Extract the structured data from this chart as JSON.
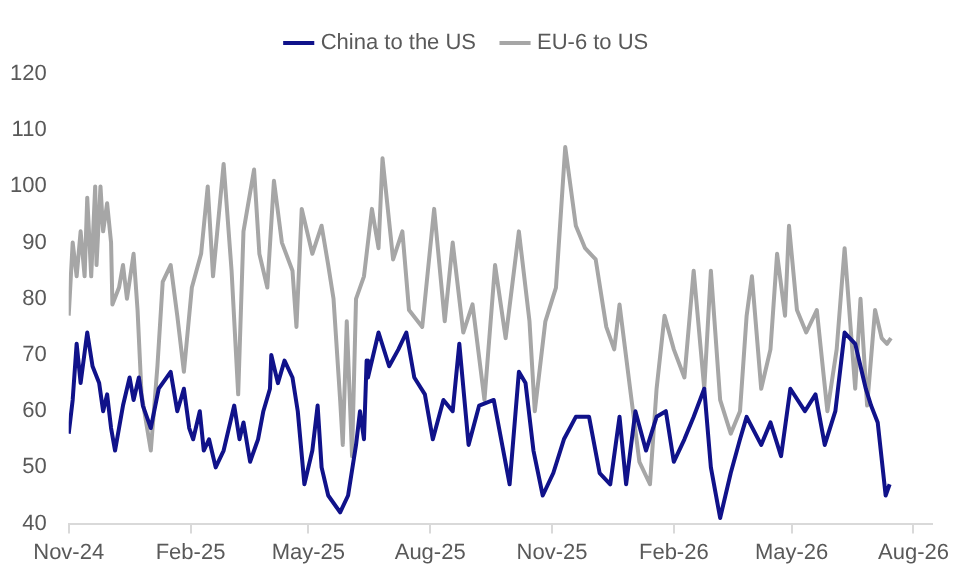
{
  "chart_data": {
    "type": "line",
    "legend": "top",
    "grid": false,
    "marker": "none",
    "line_style": "solid",
    "ylim": [
      40,
      120
    ],
    "yticks": [
      40,
      50,
      60,
      70,
      80,
      90,
      100,
      110,
      120
    ],
    "xlim": [
      "2024-11-01",
      "2026-08-15"
    ],
    "xticks": [
      {
        "value": "2024-11-01",
        "label": "Nov-24"
      },
      {
        "value": "2025-02-01",
        "label": "Feb-25"
      },
      {
        "value": "2025-05-01",
        "label": "May-25"
      },
      {
        "value": "2025-08-01",
        "label": "Aug-25"
      },
      {
        "value": "2025-11-01",
        "label": "Nov-25"
      },
      {
        "value": "2026-02-01",
        "label": "Feb-26"
      },
      {
        "value": "2026-05-01",
        "label": "May-26"
      },
      {
        "value": "2026-08-01",
        "label": "Aug-26"
      }
    ],
    "series": [
      {
        "name": "China to the US",
        "color": "#10128a",
        "x": [
          "2024-11-01",
          "2024-11-04",
          "2024-11-07",
          "2024-11-10",
          "2024-11-15",
          "2024-11-19",
          "2024-11-24",
          "2024-11-27",
          "2024-11-30",
          "2024-12-03",
          "2024-12-06",
          "2024-12-09",
          "2024-12-12",
          "2024-12-17",
          "2024-12-20",
          "2024-12-24",
          "2024-12-27",
          "2025-01-02",
          "2025-01-08",
          "2025-01-17",
          "2025-01-22",
          "2025-01-27",
          "2025-01-31",
          "2025-02-03",
          "2025-02-08",
          "2025-02-11",
          "2025-02-15",
          "2025-02-20",
          "2025-02-26",
          "2025-03-06",
          "2025-03-10",
          "2025-03-13",
          "2025-03-18",
          "2025-03-24",
          "2025-03-28",
          "2025-04-02",
          "2025-04-03",
          "2025-04-08",
          "2025-04-13",
          "2025-04-19",
          "2025-04-23",
          "2025-04-28",
          "2025-05-04",
          "2025-05-08",
          "2025-05-11",
          "2025-05-16",
          "2025-05-25",
          "2025-05-31",
          "2025-06-06",
          "2025-06-09",
          "2025-06-12",
          "2025-06-14",
          "2025-06-15",
          "2025-06-23",
          "2025-07-01",
          "2025-07-08",
          "2025-07-14",
          "2025-07-20",
          "2025-07-28",
          "2025-08-03",
          "2025-08-11",
          "2025-08-18",
          "2025-08-23",
          "2025-08-30",
          "2025-09-07",
          "2025-09-18",
          "2025-09-30",
          "2025-10-07",
          "2025-10-12",
          "2025-10-18",
          "2025-10-25",
          "2025-11-02",
          "2025-11-10",
          "2025-11-19",
          "2025-11-29",
          "2025-12-07",
          "2025-12-15",
          "2025-12-22",
          "2025-12-27",
          "2026-01-03",
          "2026-01-11",
          "2026-01-19",
          "2026-01-26",
          "2026-02-01",
          "2026-02-09",
          "2026-02-16",
          "2026-02-24",
          "2026-03-01",
          "2026-03-08",
          "2026-03-16",
          "2026-03-23",
          "2026-03-28",
          "2026-04-08",
          "2026-04-15",
          "2026-04-23",
          "2026-04-30",
          "2026-05-11",
          "2026-05-19",
          "2026-05-26",
          "2026-06-03",
          "2026-06-10",
          "2026-06-18",
          "2026-06-26",
          "2026-06-30",
          "2026-07-05",
          "2026-07-11",
          "2026-07-14"
        ],
        "values": [
          56,
          62,
          72,
          65,
          74,
          68,
          65,
          60,
          63,
          57,
          53,
          57,
          61,
          66,
          62,
          66,
          61,
          57,
          64,
          67,
          60,
          64,
          57,
          55,
          60,
          53,
          55,
          50,
          53,
          61,
          55,
          58,
          51,
          55,
          60,
          64,
          70,
          65,
          69,
          66,
          60,
          47,
          53,
          61,
          50,
          45,
          42,
          45,
          54,
          60,
          55,
          69,
          66,
          74,
          68,
          71,
          74,
          66,
          63,
          55,
          62,
          60,
          72,
          54,
          61,
          62,
          47,
          67,
          65,
          53,
          45,
          49,
          55,
          59,
          59,
          49,
          47,
          59,
          47,
          60,
          53,
          59,
          60,
          51,
          55,
          59,
          64,
          50,
          41,
          49,
          55,
          59,
          54,
          58,
          52,
          64,
          60,
          63,
          54,
          60,
          74,
          72,
          64,
          61,
          58,
          45,
          47
        ]
      },
      {
        "name": "EU-6 to US",
        "color": "#a6a6a6",
        "x": [
          "2024-11-01",
          "2024-11-04",
          "2024-11-07",
          "2024-11-10",
          "2024-11-13",
          "2024-11-15",
          "2024-11-18",
          "2024-11-21",
          "2024-11-22",
          "2024-11-25",
          "2024-11-27",
          "2024-11-30",
          "2024-12-03",
          "2024-12-04",
          "2024-12-09",
          "2024-12-12",
          "2024-12-15",
          "2024-12-20",
          "2024-12-23",
          "2024-12-26",
          "2025-01-02",
          "2025-01-07",
          "2025-01-11",
          "2025-01-17",
          "2025-01-22",
          "2025-01-27",
          "2025-02-02",
          "2025-02-09",
          "2025-02-14",
          "2025-02-18",
          "2025-02-26",
          "2025-03-04",
          "2025-03-09",
          "2025-03-13",
          "2025-03-21",
          "2025-03-25",
          "2025-03-31",
          "2025-04-05",
          "2025-04-11",
          "2025-04-19",
          "2025-04-22",
          "2025-04-26",
          "2025-05-04",
          "2025-05-11",
          "2025-05-16",
          "2025-05-20",
          "2025-05-25",
          "2025-05-27",
          "2025-05-30",
          "2025-06-03",
          "2025-06-06",
          "2025-06-12",
          "2025-06-18",
          "2025-06-23",
          "2025-06-26",
          "2025-07-04",
          "2025-07-11",
          "2025-07-16",
          "2025-07-26",
          "2025-08-04",
          "2025-08-12",
          "2025-08-18",
          "2025-08-26",
          "2025-09-02",
          "2025-09-11",
          "2025-09-19",
          "2025-09-27",
          "2025-10-07",
          "2025-10-15",
          "2025-10-19",
          "2025-10-27",
          "2025-11-04",
          "2025-11-11",
          "2025-11-19",
          "2025-11-26",
          "2025-12-04",
          "2025-12-12",
          "2025-12-18",
          "2025-12-22",
          "2025-12-30",
          "2026-01-06",
          "2026-01-14",
          "2026-01-19",
          "2026-01-25",
          "2026-02-01",
          "2026-02-09",
          "2026-02-16",
          "2026-02-24",
          "2026-03-01",
          "2026-03-08",
          "2026-03-16",
          "2026-03-23",
          "2026-03-28",
          "2026-04-01",
          "2026-04-08",
          "2026-04-15",
          "2026-04-20",
          "2026-04-26",
          "2026-04-29",
          "2026-05-05",
          "2026-05-12",
          "2026-05-20",
          "2026-05-28",
          "2026-06-04",
          "2026-06-10",
          "2026-06-18",
          "2026-06-22",
          "2026-06-27",
          "2026-07-03",
          "2026-07-08",
          "2026-07-12",
          "2026-07-15"
        ],
        "values": [
          77,
          90,
          84,
          92,
          84,
          98,
          84,
          100,
          86,
          100,
          92,
          97,
          90,
          79,
          82,
          86,
          80,
          88,
          78,
          63,
          53,
          68,
          83,
          86,
          77,
          67,
          82,
          88,
          100,
          84,
          104,
          85,
          63,
          92,
          103,
          88,
          82,
          101,
          90,
          85,
          75,
          96,
          88,
          93,
          86,
          80,
          62,
          54,
          76,
          52,
          80,
          84,
          96,
          89,
          105,
          87,
          92,
          78,
          75,
          96,
          76,
          90,
          74,
          79,
          62,
          86,
          73,
          92,
          76,
          60,
          76,
          82,
          107,
          93,
          89,
          87,
          75,
          71,
          79,
          64,
          51,
          47,
          64,
          77,
          71,
          66,
          85,
          64,
          85,
          62,
          56,
          60,
          77,
          84,
          64,
          71,
          88,
          77,
          93,
          78,
          74,
          78,
          60,
          71,
          89,
          64,
          80,
          61,
          78,
          73,
          72,
          73
        ]
      }
    ]
  }
}
